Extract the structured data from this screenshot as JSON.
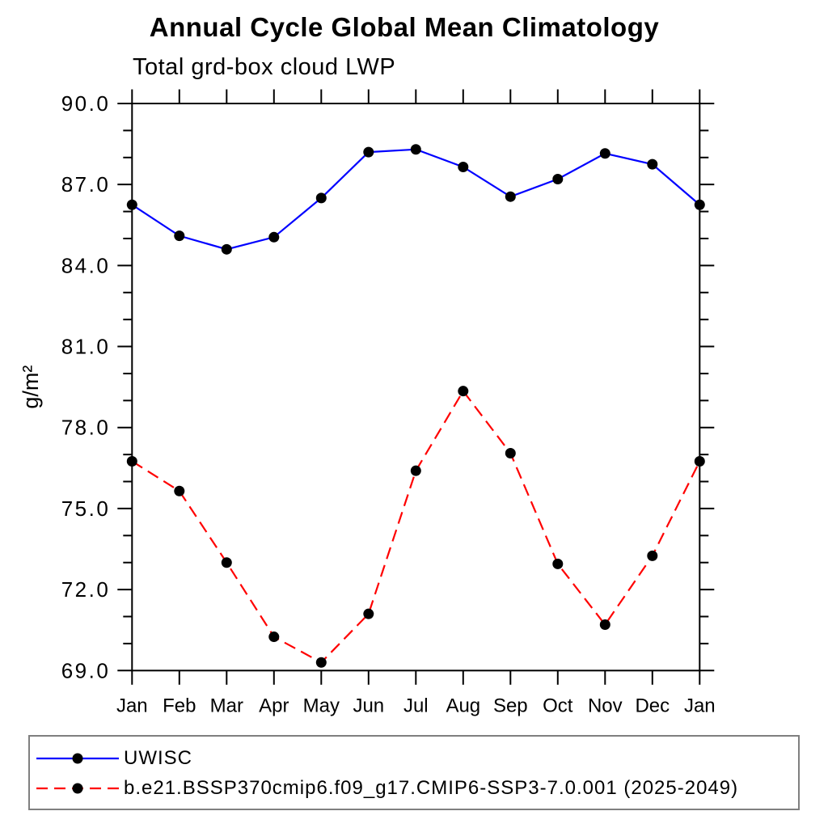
{
  "chart_data": {
    "type": "line",
    "title": "Annual Cycle Global Mean Climatology",
    "subtitle": "Total grd-box cloud LWP",
    "xlabel": "",
    "ylabel": "g/m²",
    "x_categories": [
      "Jan",
      "Feb",
      "Mar",
      "Apr",
      "May",
      "Jun",
      "Jul",
      "Aug",
      "Sep",
      "Oct",
      "Nov",
      "Dec",
      "Jan"
    ],
    "ylim": [
      69.0,
      90.0
    ],
    "y_major_ticks": [
      69.0,
      72.0,
      75.0,
      78.0,
      81.0,
      84.0,
      87.0,
      90.0
    ],
    "y_minor_step": 1.0,
    "y_tick_decimals": 1,
    "grid": false,
    "axis_color": "#000000",
    "marker_color": "#000000",
    "series": [
      {
        "name": "UWISC",
        "color": "#0000ff",
        "style": "solid",
        "marker": "circle",
        "values": [
          86.25,
          85.1,
          84.6,
          85.05,
          86.5,
          88.2,
          88.3,
          87.65,
          86.55,
          87.2,
          88.15,
          87.75,
          86.25
        ]
      },
      {
        "name": "b.e21.BSSP370cmip6.f09_g17.CMIP6-SSP3-7.0.001 (2025-2049)",
        "color": "#ff0000",
        "style": "dashed",
        "marker": "circle",
        "values": [
          76.75,
          75.65,
          73.0,
          70.25,
          69.3,
          71.1,
          76.4,
          79.35,
          77.05,
          72.95,
          70.7,
          73.25,
          76.75
        ]
      }
    ],
    "legend": {
      "position": "bottom-left-box",
      "border_color": "#7f7f7f",
      "entries": [
        "UWISC",
        "b.e21.BSSP370cmip6.f09_g17.CMIP6-SSP3-7.0.001 (2025-2049)"
      ]
    }
  }
}
